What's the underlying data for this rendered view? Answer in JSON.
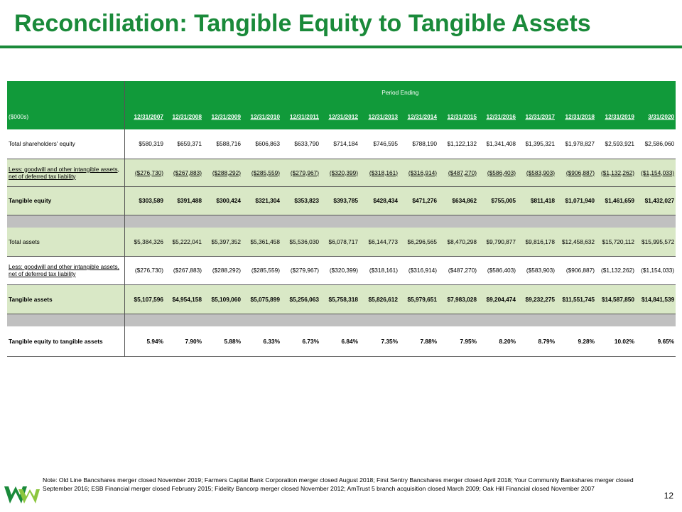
{
  "title": "Reconciliation: Tangible Equity to Tangible Assets",
  "table": {
    "period_header": "Period Ending",
    "units_label": "($000s)",
    "periods": [
      "12/31/2007",
      "12/31/2008",
      "12/31/2009",
      "12/31/2010",
      "12/31/2011",
      "12/31/2012",
      "12/31/2013",
      "12/31/2014",
      "12/31/2015",
      "12/31/2016",
      "12/31/2017",
      "12/31/2018",
      "12/31/2019",
      "3/31/2020"
    ],
    "rows": [
      {
        "label": "Total shareholders' equity",
        "values": [
          "$580,319",
          "$659,371",
          "$588,716",
          "$606,863",
          "$633,790",
          "$714,184",
          "$746,595",
          "$788,190",
          "$1,122,132",
          "$1,341,408",
          "$1,395,321",
          "$1,978,827",
          "$2,593,921",
          "$2,586,060"
        ]
      },
      {
        "label": "Less:  goodwill and other intangible assets, net of deferred tax liability",
        "values": [
          "($276,730)",
          "($267,883)",
          "($288,292)",
          "($285,559)",
          "($279,967)",
          "($320,399)",
          "($318,161)",
          "($316,914)",
          "($487,270)",
          "($586,403)",
          "($583,903)",
          "($906,887)",
          "($1,132,262)",
          "($1,154,033)"
        ]
      },
      {
        "label": "Tangible equity",
        "values": [
          "$303,589",
          "$391,488",
          "$300,424",
          "$321,304",
          "$353,823",
          "$393,785",
          "$428,434",
          "$471,276",
          "$634,862",
          "$755,005",
          "$811,418",
          "$1,071,940",
          "$1,461,659",
          "$1,432,027"
        ]
      },
      {
        "label": "Total assets",
        "values": [
          "$5,384,326",
          "$5,222,041",
          "$5,397,352",
          "$5,361,458",
          "$5,536,030",
          "$6,078,717",
          "$6,144,773",
          "$6,296,565",
          "$8,470,298",
          "$9,790,877",
          "$9,816,178",
          "$12,458,632",
          "$15,720,112",
          "$15,995,572"
        ]
      },
      {
        "label": "Less:  goodwill and other intangible assets, net of deferred tax liability",
        "values": [
          "($276,730)",
          "($267,883)",
          "($288,292)",
          "($285,559)",
          "($279,967)",
          "($320,399)",
          "($318,161)",
          "($316,914)",
          "($487,270)",
          "($586,403)",
          "($583,903)",
          "($906,887)",
          "($1,132,262)",
          "($1,154,033)"
        ]
      },
      {
        "label": "Tangible assets",
        "values": [
          "$5,107,596",
          "$4,954,158",
          "$5,109,060",
          "$5,075,899",
          "$5,256,063",
          "$5,758,318",
          "$5,826,612",
          "$5,979,651",
          "$7,983,028",
          "$9,204,474",
          "$9,232,275",
          "$11,551,745",
          "$14,587,850",
          "$14,841,539"
        ]
      },
      {
        "label": "Tangible equity to tangible assets",
        "values": [
          "5.94%",
          "7.90%",
          "5.88%",
          "6.33%",
          "6.73%",
          "6.84%",
          "7.35%",
          "7.88%",
          "7.95%",
          "8.20%",
          "8.79%",
          "9.28%",
          "10.02%",
          "9.65%"
        ]
      }
    ]
  },
  "note": "Note:  Old Line Bancshares merger closed November 2019; Farmers Capital Bank Corporation merger closed August 2018; First Sentry Bancshares merger closed April 2018; Your Community  Bankshares merger closed September 2016; ESB Financial merger closed February 2015; Fidelity Bancorp merger closed November 2012; AmTrust 5 branch acquisition closed March 2009; Oak Hill Financial closed November 2007",
  "page_number": "12",
  "logo": {
    "icon": "wesbanco-logo-icon",
    "colors": [
      "#1a8a3a",
      "#8cc63f"
    ]
  },
  "colors": {
    "brand_green": "#1a8a3a",
    "header_green": "#119a3a",
    "row_shade": "#d9e8c6",
    "gap_gray": "#c0c0c0"
  }
}
